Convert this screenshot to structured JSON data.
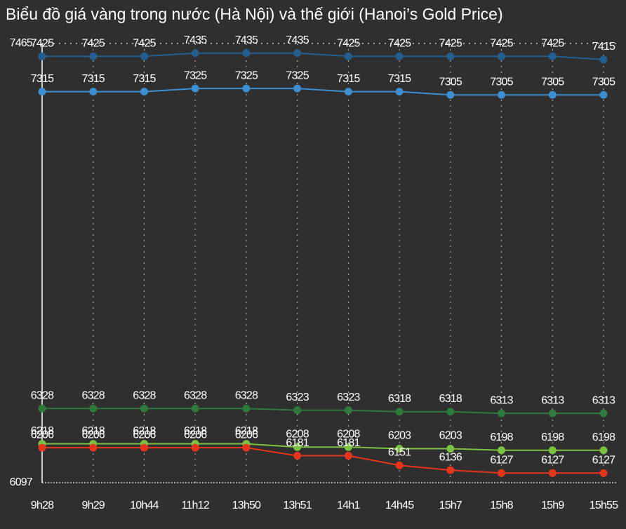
{
  "chart_data": {
    "type": "line",
    "title": "Biểu đồ giá vàng trong nước (Hà Nội) và thế giới (Hanoi’s Gold Price)",
    "categories": [
      "9h28",
      "9h29",
      "10h44",
      "11h12",
      "13h50",
      "13h51",
      "14h1",
      "14h45",
      "15h7",
      "15h8",
      "15h9",
      "15h55"
    ],
    "series": [
      {
        "color": "#245e8f",
        "values": [
          7425,
          7425,
          7425,
          7435,
          7435,
          7435,
          7425,
          7425,
          7425,
          7425,
          7425,
          7415
        ]
      },
      {
        "color": "#3d8fd1",
        "values": [
          7315,
          7315,
          7315,
          7325,
          7325,
          7325,
          7315,
          7315,
          7305,
          7305,
          7305,
          7305
        ]
      },
      {
        "color": "#2f7a3a",
        "values": [
          6328,
          6328,
          6328,
          6328,
          6328,
          6323,
          6323,
          6318,
          6318,
          6313,
          6313,
          6313
        ]
      },
      {
        "color": "#7cc242",
        "values": [
          6218,
          6218,
          6218,
          6218,
          6218,
          6208,
          6208,
          6203,
          6203,
          6198,
          6198,
          6198
        ]
      },
      {
        "color": "#e8341c",
        "values": [
          6206,
          6206,
          6206,
          6206,
          6206,
          6181,
          6181,
          6151,
          6136,
          6127,
          6127,
          6127
        ]
      }
    ],
    "ylim": [
      6097,
      7465
    ],
    "yticks": [
      6097,
      7465
    ],
    "grid": true
  }
}
